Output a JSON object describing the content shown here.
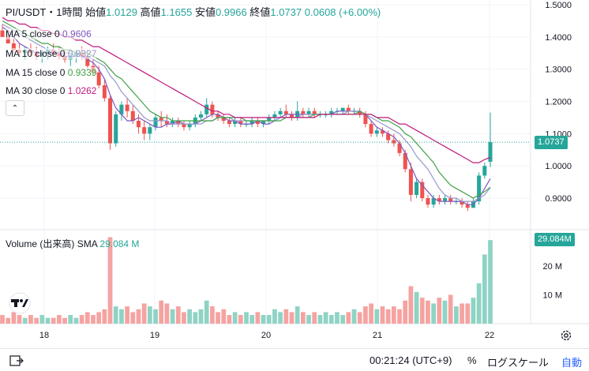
{
  "header": {
    "symbol": "PI/USDT・1時間",
    "open_label": "始値",
    "open_value": "1.0129",
    "high_label": "高値",
    "high_value": "1.1655",
    "low_label": "安値",
    "low_value": "0.9966",
    "close_label": "終値",
    "close_value": "1.0737",
    "change": "0.0608 (+6.00%)"
  },
  "ma_legend": [
    {
      "label": "MA 5 close 0",
      "value": "0.9606",
      "color": "#7e57c2"
    },
    {
      "label": "MA 10 close 0",
      "value": "0.9327",
      "color": "#9598c9"
    },
    {
      "label": "MA 15 close 0",
      "value": "0.9339",
      "color": "#43a047"
    },
    {
      "label": "MA 30 close 0",
      "value": "1.0262",
      "color": "#c2187c"
    }
  ],
  "volume_legend": {
    "label": "Volume (出来高)",
    "sma_label": "SMA",
    "sma_value": "29.084 M"
  },
  "price_axis": {
    "ticks": [
      "1.5000",
      "1.4000",
      "1.3000",
      "1.2000",
      "1.1000",
      "1.0000",
      "0.9000"
    ],
    "current_price": "1.0737"
  },
  "volume_axis": {
    "ticks": [
      "20 M",
      "10 M"
    ],
    "current_volume": "29.084M"
  },
  "time_axis": {
    "ticks": [
      "18",
      "19",
      "20",
      "21",
      "22"
    ]
  },
  "footer": {
    "time": "00:21:24 (UTC+9)",
    "percent": "%",
    "log_scale": "ログスケール",
    "auto": "自動"
  },
  "colors": {
    "up": "#26a69a",
    "down": "#ef5350",
    "vol_up": "#8fd3c5",
    "vol_down": "#f5a3a1"
  },
  "chart_data": {
    "type": "candlestick",
    "price_range": [
      0.82,
      1.52
    ],
    "volume_range": [
      0,
      32
    ],
    "candles": [
      [
        1.42,
        1.44,
        1.4,
        1.4
      ],
      [
        1.4,
        1.42,
        1.38,
        1.38
      ],
      [
        1.38,
        1.4,
        1.35,
        1.36
      ],
      [
        1.36,
        1.38,
        1.34,
        1.35
      ],
      [
        1.35,
        1.37,
        1.33,
        1.36
      ],
      [
        1.36,
        1.38,
        1.34,
        1.35
      ],
      [
        1.35,
        1.37,
        1.33,
        1.34
      ],
      [
        1.34,
        1.36,
        1.32,
        1.35
      ],
      [
        1.35,
        1.37,
        1.33,
        1.36
      ],
      [
        1.36,
        1.38,
        1.34,
        1.35
      ],
      [
        1.35,
        1.37,
        1.33,
        1.34
      ],
      [
        1.34,
        1.36,
        1.32,
        1.33
      ],
      [
        1.33,
        1.35,
        1.31,
        1.34
      ],
      [
        1.34,
        1.36,
        1.32,
        1.35
      ],
      [
        1.35,
        1.37,
        1.33,
        1.34
      ],
      [
        1.34,
        1.36,
        1.3,
        1.31
      ],
      [
        1.31,
        1.33,
        1.28,
        1.29
      ],
      [
        1.29,
        1.31,
        1.24,
        1.25
      ],
      [
        1.25,
        1.27,
        1.2,
        1.21
      ],
      [
        1.21,
        1.22,
        1.05,
        1.07
      ],
      [
        1.07,
        1.17,
        1.06,
        1.16
      ],
      [
        1.16,
        1.2,
        1.14,
        1.19
      ],
      [
        1.19,
        1.21,
        1.15,
        1.17
      ],
      [
        1.17,
        1.19,
        1.13,
        1.14
      ],
      [
        1.14,
        1.16,
        1.1,
        1.12
      ],
      [
        1.12,
        1.14,
        1.08,
        1.1
      ],
      [
        1.1,
        1.13,
        1.08,
        1.12
      ],
      [
        1.12,
        1.16,
        1.11,
        1.15
      ],
      [
        1.15,
        1.17,
        1.12,
        1.14
      ],
      [
        1.14,
        1.16,
        1.12,
        1.13
      ],
      [
        1.13,
        1.15,
        1.12,
        1.14
      ],
      [
        1.14,
        1.15,
        1.12,
        1.13
      ],
      [
        1.13,
        1.14,
        1.11,
        1.12
      ],
      [
        1.12,
        1.14,
        1.11,
        1.13
      ],
      [
        1.13,
        1.16,
        1.12,
        1.15
      ],
      [
        1.15,
        1.17,
        1.14,
        1.16
      ],
      [
        1.16,
        1.21,
        1.15,
        1.19
      ],
      [
        1.19,
        1.2,
        1.15,
        1.16
      ],
      [
        1.16,
        1.17,
        1.14,
        1.15
      ],
      [
        1.15,
        1.16,
        1.13,
        1.14
      ],
      [
        1.14,
        1.15,
        1.12,
        1.13
      ],
      [
        1.13,
        1.15,
        1.12,
        1.14
      ],
      [
        1.14,
        1.15,
        1.12,
        1.13
      ],
      [
        1.13,
        1.14,
        1.12,
        1.13
      ],
      [
        1.13,
        1.15,
        1.12,
        1.14
      ],
      [
        1.14,
        1.15,
        1.12,
        1.13
      ],
      [
        1.13,
        1.14,
        1.12,
        1.14
      ],
      [
        1.14,
        1.16,
        1.13,
        1.15
      ],
      [
        1.15,
        1.17,
        1.14,
        1.16
      ],
      [
        1.16,
        1.18,
        1.15,
        1.17
      ],
      [
        1.17,
        1.19,
        1.15,
        1.16
      ],
      [
        1.16,
        1.17,
        1.14,
        1.15
      ],
      [
        1.15,
        1.2,
        1.14,
        1.17
      ],
      [
        1.17,
        1.18,
        1.15,
        1.16
      ],
      [
        1.16,
        1.18,
        1.15,
        1.17
      ],
      [
        1.17,
        1.18,
        1.15,
        1.16
      ],
      [
        1.16,
        1.17,
        1.15,
        1.16
      ],
      [
        1.16,
        1.17,
        1.15,
        1.16
      ],
      [
        1.16,
        1.18,
        1.15,
        1.17
      ],
      [
        1.17,
        1.18,
        1.16,
        1.17
      ],
      [
        1.17,
        1.18,
        1.16,
        1.18
      ],
      [
        1.18,
        1.19,
        1.16,
        1.17
      ],
      [
        1.17,
        1.18,
        1.16,
        1.17
      ],
      [
        1.17,
        1.18,
        1.15,
        1.16
      ],
      [
        1.16,
        1.17,
        1.12,
        1.13
      ],
      [
        1.13,
        1.14,
        1.09,
        1.1
      ],
      [
        1.1,
        1.12,
        1.09,
        1.11
      ],
      [
        1.11,
        1.12,
        1.09,
        1.1
      ],
      [
        1.1,
        1.11,
        1.07,
        1.08
      ],
      [
        1.08,
        1.1,
        1.06,
        1.07
      ],
      [
        1.07,
        1.08,
        1.03,
        1.04
      ],
      [
        1.04,
        1.05,
        0.98,
        0.99
      ],
      [
        0.99,
        1.01,
        0.89,
        0.91
      ],
      [
        0.91,
        0.96,
        0.9,
        0.95
      ],
      [
        0.95,
        0.96,
        0.89,
        0.9
      ],
      [
        0.9,
        0.91,
        0.87,
        0.88
      ],
      [
        0.88,
        0.91,
        0.87,
        0.9
      ],
      [
        0.9,
        0.91,
        0.88,
        0.89
      ],
      [
        0.89,
        0.91,
        0.88,
        0.9
      ],
      [
        0.9,
        0.91,
        0.88,
        0.89
      ],
      [
        0.89,
        0.9,
        0.88,
        0.89
      ],
      [
        0.89,
        0.9,
        0.87,
        0.88
      ],
      [
        0.88,
        0.89,
        0.86,
        0.87
      ],
      [
        0.87,
        0.9,
        0.87,
        0.89
      ],
      [
        0.89,
        0.98,
        0.88,
        0.97
      ],
      [
        0.97,
        1.01,
        0.96,
        1.0
      ],
      [
        1.0129,
        1.1655,
        0.9966,
        1.0737
      ]
    ],
    "volumes": [
      3,
      2,
      4,
      3,
      2,
      3,
      2,
      3,
      2,
      2,
      3,
      2,
      3,
      2,
      3,
      4,
      3,
      4,
      5,
      30,
      6,
      5,
      6,
      4,
      5,
      7,
      6,
      5,
      8,
      7,
      5,
      6,
      4,
      5,
      4,
      5,
      8,
      6,
      4,
      5,
      3,
      4,
      3,
      4,
      3,
      4,
      3,
      3,
      5,
      4,
      5,
      4,
      6,
      4,
      3,
      4,
      3,
      4,
      3,
      4,
      3,
      4,
      5,
      4,
      6,
      7,
      5,
      6,
      5,
      6,
      5,
      8,
      13,
      11,
      9,
      8,
      7,
      9,
      8,
      10,
      6,
      7,
      7,
      9,
      14,
      24,
      29
    ],
    "ma_series": [
      {
        "name": "MA 5 close 0",
        "color": "#7e57c2",
        "values": [
          1.43,
          1.42,
          1.4,
          1.38,
          1.37,
          1.36,
          1.35,
          1.35,
          1.35,
          1.35,
          1.35,
          1.34,
          1.34,
          1.34,
          1.34,
          1.33,
          1.32,
          1.3,
          1.27,
          1.22,
          1.18,
          1.16,
          1.14,
          1.14,
          1.15,
          1.14,
          1.13,
          1.12,
          1.12,
          1.13,
          1.13,
          1.14,
          1.13,
          1.13,
          1.13,
          1.14,
          1.15,
          1.16,
          1.16,
          1.15,
          1.14,
          1.14,
          1.13,
          1.13,
          1.13,
          1.14,
          1.13,
          1.13,
          1.14,
          1.15,
          1.16,
          1.16,
          1.16,
          1.16,
          1.16,
          1.16,
          1.16,
          1.16,
          1.16,
          1.17,
          1.17,
          1.17,
          1.17,
          1.17,
          1.16,
          1.14,
          1.12,
          1.11,
          1.1,
          1.09,
          1.07,
          1.04,
          1.0,
          0.96,
          0.94,
          0.92,
          0.9,
          0.89,
          0.89,
          0.89,
          0.89,
          0.89,
          0.88,
          0.88,
          0.9,
          0.93,
          0.9606
        ]
      },
      {
        "name": "MA 10 close 0",
        "color": "#9598c9",
        "values": [
          1.44,
          1.43,
          1.42,
          1.41,
          1.4,
          1.39,
          1.38,
          1.37,
          1.36,
          1.36,
          1.35,
          1.35,
          1.35,
          1.34,
          1.34,
          1.34,
          1.33,
          1.32,
          1.31,
          1.28,
          1.26,
          1.23,
          1.21,
          1.19,
          1.17,
          1.15,
          1.14,
          1.14,
          1.14,
          1.14,
          1.13,
          1.13,
          1.13,
          1.13,
          1.13,
          1.13,
          1.14,
          1.14,
          1.15,
          1.15,
          1.15,
          1.14,
          1.14,
          1.14,
          1.14,
          1.14,
          1.14,
          1.14,
          1.14,
          1.15,
          1.15,
          1.15,
          1.15,
          1.16,
          1.16,
          1.16,
          1.16,
          1.16,
          1.16,
          1.16,
          1.16,
          1.17,
          1.17,
          1.17,
          1.16,
          1.15,
          1.14,
          1.13,
          1.12,
          1.11,
          1.1,
          1.08,
          1.06,
          1.03,
          1.01,
          0.99,
          0.96,
          0.93,
          0.91,
          0.9,
          0.9,
          0.89,
          0.89,
          0.89,
          0.9,
          0.91,
          0.9327
        ]
      },
      {
        "name": "MA 15 close 0",
        "color": "#43a047",
        "values": [
          1.45,
          1.44,
          1.43,
          1.42,
          1.41,
          1.4,
          1.39,
          1.38,
          1.38,
          1.37,
          1.37,
          1.36,
          1.36,
          1.35,
          1.35,
          1.35,
          1.34,
          1.33,
          1.32,
          1.3,
          1.28,
          1.27,
          1.25,
          1.23,
          1.21,
          1.19,
          1.17,
          1.16,
          1.15,
          1.15,
          1.14,
          1.14,
          1.14,
          1.14,
          1.14,
          1.14,
          1.14,
          1.14,
          1.15,
          1.15,
          1.15,
          1.15,
          1.15,
          1.14,
          1.14,
          1.14,
          1.14,
          1.14,
          1.14,
          1.14,
          1.15,
          1.15,
          1.15,
          1.15,
          1.15,
          1.16,
          1.16,
          1.16,
          1.16,
          1.16,
          1.16,
          1.16,
          1.16,
          1.17,
          1.16,
          1.16,
          1.15,
          1.14,
          1.14,
          1.13,
          1.12,
          1.1,
          1.09,
          1.07,
          1.05,
          1.03,
          1.01,
          0.98,
          0.96,
          0.94,
          0.93,
          0.92,
          0.91,
          0.9,
          0.91,
          0.92,
          0.9339
        ]
      },
      {
        "name": "MA 30 close 0",
        "color": "#c2187c",
        "values": [
          1.46,
          1.45,
          1.45,
          1.44,
          1.44,
          1.43,
          1.43,
          1.42,
          1.42,
          1.41,
          1.41,
          1.4,
          1.4,
          1.39,
          1.39,
          1.38,
          1.37,
          1.37,
          1.36,
          1.35,
          1.34,
          1.33,
          1.32,
          1.31,
          1.3,
          1.29,
          1.28,
          1.27,
          1.26,
          1.25,
          1.24,
          1.23,
          1.22,
          1.21,
          1.2,
          1.19,
          1.18,
          1.17,
          1.17,
          1.16,
          1.16,
          1.15,
          1.15,
          1.15,
          1.15,
          1.15,
          1.15,
          1.15,
          1.15,
          1.15,
          1.15,
          1.15,
          1.15,
          1.15,
          1.15,
          1.15,
          1.16,
          1.16,
          1.16,
          1.16,
          1.16,
          1.16,
          1.16,
          1.16,
          1.16,
          1.16,
          1.15,
          1.15,
          1.15,
          1.14,
          1.13,
          1.13,
          1.12,
          1.11,
          1.1,
          1.09,
          1.08,
          1.07,
          1.06,
          1.05,
          1.04,
          1.03,
          1.02,
          1.01,
          1.01,
          1.02,
          1.0262
        ]
      }
    ]
  }
}
